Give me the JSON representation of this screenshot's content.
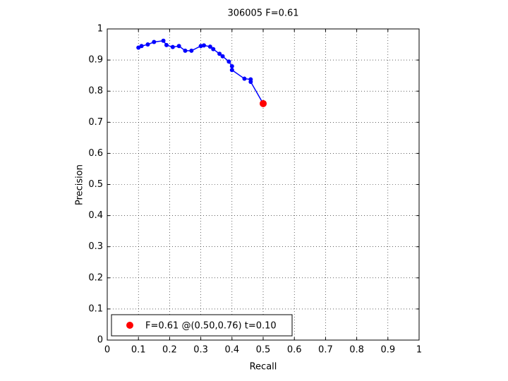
{
  "chart_data": {
    "type": "line",
    "title": "306005 F=0.61",
    "xlabel": "Recall",
    "ylabel": "Precision",
    "xlim": [
      0,
      1
    ],
    "ylim": [
      0,
      1
    ],
    "xticks": [
      0,
      0.1,
      0.2,
      0.3,
      0.4,
      0.5,
      0.6,
      0.7,
      0.8,
      0.9,
      1
    ],
    "yticks": [
      0,
      0.1,
      0.2,
      0.3,
      0.4,
      0.5,
      0.6,
      0.7,
      0.8,
      0.9,
      1
    ],
    "grid": true,
    "legend": "lower left",
    "series": [
      {
        "color": "#0000ff",
        "markers": true,
        "x": [
          0.1,
          0.11,
          0.13,
          0.15,
          0.18,
          0.19,
          0.21,
          0.23,
          0.25,
          0.27,
          0.3,
          0.31,
          0.33,
          0.34,
          0.36,
          0.37,
          0.39,
          0.4,
          0.4,
          0.44,
          0.46,
          0.46,
          0.5
        ],
        "values": [
          0.94,
          0.945,
          0.95,
          0.958,
          0.962,
          0.948,
          0.942,
          0.945,
          0.93,
          0.93,
          0.945,
          0.947,
          0.943,
          0.935,
          0.92,
          0.912,
          0.895,
          0.88,
          0.868,
          0.84,
          0.838,
          0.83,
          0.76
        ]
      },
      {
        "name": "F=0.61 @(0.50,0.76) t=0.10",
        "color": "#ff0000",
        "markers": true,
        "big": true,
        "x": [
          0.5
        ],
        "values": [
          0.76
        ]
      }
    ]
  }
}
